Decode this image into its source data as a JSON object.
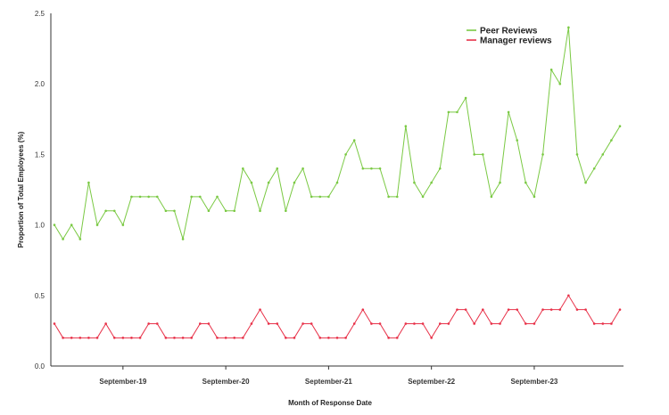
{
  "chart_data": {
    "type": "line",
    "title": "",
    "xlabel": "Month of Response Date",
    "ylabel": "Proportion of Total Employees (%)",
    "ylim": [
      0,
      2.5
    ],
    "yticks": [
      "0.0",
      "0.5",
      "1.0",
      "1.5",
      "2.0",
      "2.5"
    ],
    "ytick_values": [
      0,
      0.5,
      1.0,
      1.5,
      2.0,
      2.5
    ],
    "xtick_labels": [
      "September-19",
      "September-20",
      "September-21",
      "September-22",
      "September-23"
    ],
    "xtick_indices": [
      8,
      20,
      32,
      44,
      56
    ],
    "num_points": 67,
    "legend_position": "top-right",
    "grid": false,
    "series": [
      {
        "name": "Peer Reviews",
        "color": "#7ac943",
        "values": [
          1.0,
          0.9,
          1.0,
          0.9,
          1.3,
          1.0,
          1.1,
          1.1,
          1.0,
          1.2,
          1.2,
          1.2,
          1.2,
          1.1,
          1.1,
          0.9,
          1.2,
          1.2,
          1.1,
          1.2,
          1.1,
          1.1,
          1.4,
          1.3,
          1.1,
          1.3,
          1.4,
          1.1,
          1.3,
          1.4,
          1.2,
          1.2,
          1.2,
          1.3,
          1.5,
          1.6,
          1.4,
          1.4,
          1.4,
          1.2,
          1.2,
          1.7,
          1.3,
          1.2,
          1.3,
          1.4,
          1.8,
          1.8,
          1.9,
          1.5,
          1.5,
          1.2,
          1.3,
          1.8,
          1.6,
          1.3,
          1.2,
          1.5,
          2.1,
          2.0,
          2.4,
          1.5,
          1.3,
          1.4,
          1.5,
          1.6,
          1.7
        ]
      },
      {
        "name": "Manager reviews",
        "color": "#e8334a",
        "values": [
          0.3,
          0.2,
          0.2,
          0.2,
          0.2,
          0.2,
          0.3,
          0.2,
          0.2,
          0.2,
          0.2,
          0.3,
          0.3,
          0.2,
          0.2,
          0.2,
          0.2,
          0.3,
          0.3,
          0.2,
          0.2,
          0.2,
          0.2,
          0.3,
          0.4,
          0.3,
          0.3,
          0.2,
          0.2,
          0.3,
          0.3,
          0.2,
          0.2,
          0.2,
          0.2,
          0.3,
          0.4,
          0.3,
          0.3,
          0.2,
          0.2,
          0.3,
          0.3,
          0.3,
          0.2,
          0.3,
          0.3,
          0.4,
          0.4,
          0.3,
          0.4,
          0.3,
          0.3,
          0.4,
          0.4,
          0.3,
          0.3,
          0.4,
          0.4,
          0.4,
          0.5,
          0.4,
          0.4,
          0.3,
          0.3,
          0.3,
          0.4
        ]
      }
    ]
  }
}
